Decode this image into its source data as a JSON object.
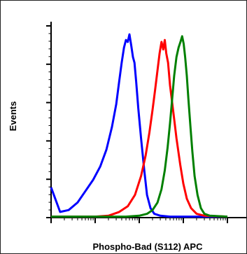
{
  "chart_data": {
    "type": "line",
    "title": "",
    "xlabel": "Phospho-Bad (S112) APC",
    "ylabel": "Events",
    "x_scale": "log",
    "xlim": [
      1,
      10000
    ],
    "ylim": [
      0,
      100
    ],
    "grid": false,
    "legend": false,
    "series": [
      {
        "color": "#0000ff",
        "x": [
          1,
          1.6,
          2.5,
          4,
          6,
          9,
          13,
          18,
          24,
          30,
          35,
          40,
          45,
          50,
          55,
          60,
          66,
          72,
          78,
          85,
          95,
          110,
          130,
          150,
          180,
          220,
          300,
          500,
          1000,
          10000
        ],
        "y": [
          16,
          3,
          4,
          8,
          14,
          20,
          27,
          36,
          48,
          60,
          72,
          82,
          90,
          94,
          93,
          97,
          91,
          85,
          82,
          72,
          58,
          42,
          25,
          12,
          5,
          2,
          1,
          0.5,
          0.5,
          0.5
        ]
      },
      {
        "color": "#ff0000",
        "x": [
          1,
          10,
          20,
          35,
          55,
          80,
          110,
          140,
          170,
          200,
          230,
          260,
          290,
          320,
          350,
          380,
          410,
          450,
          500,
          600,
          700,
          850,
          1000,
          1200,
          1500,
          2000,
          3000,
          10000
        ],
        "y": [
          0.5,
          0.5,
          1,
          3,
          6,
          12,
          22,
          33,
          45,
          57,
          68,
          78,
          87,
          93,
          89,
          94,
          87,
          82,
          70,
          55,
          42,
          28,
          18,
          10,
          5,
          2,
          1,
          0.5
        ]
      },
      {
        "color": "#008000",
        "x": [
          1,
          50,
          100,
          150,
          200,
          260,
          320,
          380,
          440,
          500,
          560,
          620,
          700,
          780,
          860,
          940,
          1020,
          1100,
          1200,
          1300,
          1450,
          1600,
          1800,
          2100,
          2500,
          3000,
          4000,
          10000
        ],
        "y": [
          0.5,
          0.5,
          1,
          2,
          4,
          8,
          15,
          25,
          37,
          50,
          63,
          75,
          85,
          90,
          93,
          96,
          92,
          85,
          75,
          63,
          48,
          35,
          22,
          12,
          5,
          2,
          1,
          0.5
        ]
      }
    ]
  }
}
